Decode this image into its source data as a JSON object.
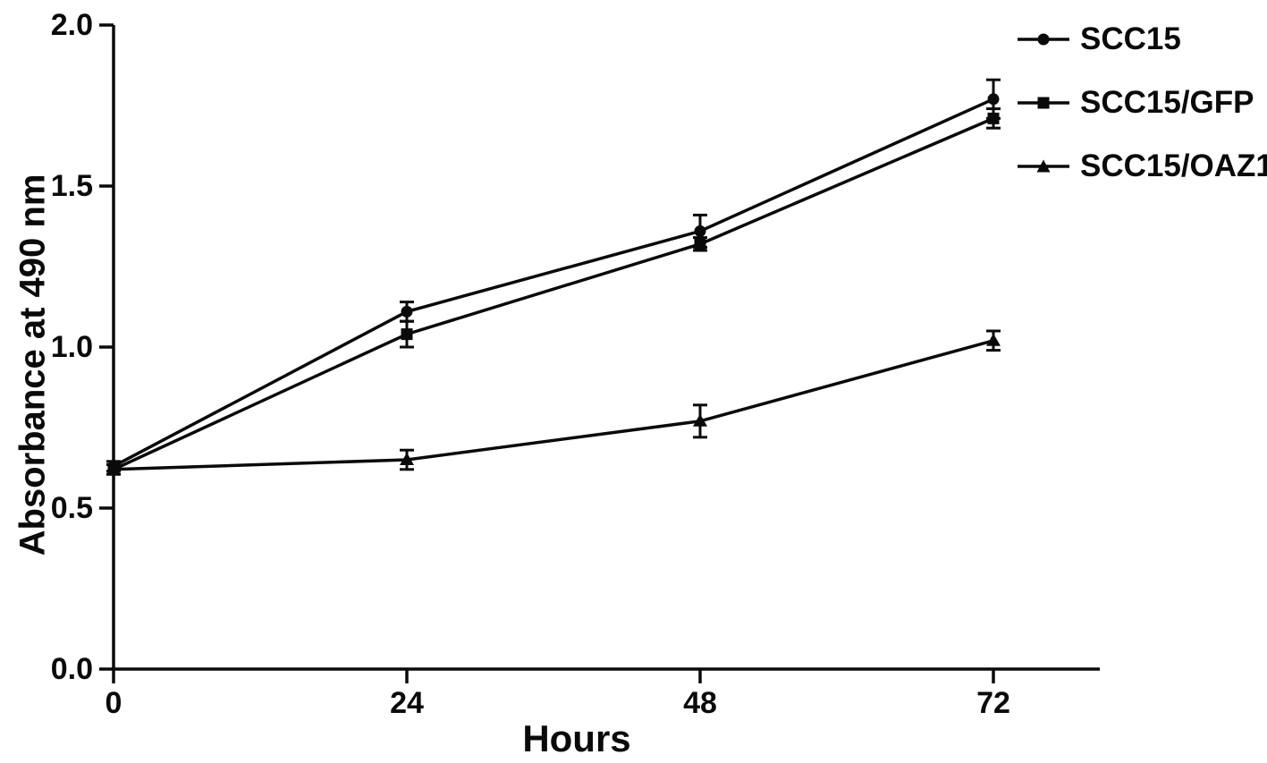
{
  "figure": {
    "background": "#ffffff",
    "ink_color": "#0a0a0a"
  },
  "chart_data": {
    "type": "line",
    "title": "",
    "xlabel": "Hours",
    "ylabel": "Absorbance at 490 nm",
    "x": [
      0,
      24,
      48,
      72
    ],
    "xtick_labels": [
      "0",
      "24",
      "48",
      "72"
    ],
    "ytick_values": [
      0.0,
      0.5,
      1.0,
      1.5,
      2.0
    ],
    "ytick_labels": [
      "0.0",
      "0.5",
      "1.0",
      "1.5",
      "2.0"
    ],
    "xlim": [
      0,
      80.7
    ],
    "ylim": [
      0.0,
      2.0
    ],
    "grid": false,
    "legend_position": "top-right",
    "color": "#0a0a0a",
    "series": [
      {
        "name": "SCC15",
        "marker": "circle",
        "values": [
          0.63,
          1.11,
          1.36,
          1.77
        ],
        "errors": [
          0.015,
          0.03,
          0.05,
          0.06
        ]
      },
      {
        "name": "SCC15/GFP",
        "marker": "square",
        "values": [
          0.62,
          1.04,
          1.32,
          1.71
        ],
        "errors": [
          0.015,
          0.04,
          0.02,
          0.03
        ]
      },
      {
        "name": "SCC15/OAZ1",
        "marker": "triangle",
        "values": [
          0.62,
          0.65,
          0.77,
          1.02
        ],
        "errors": [
          0.015,
          0.03,
          0.05,
          0.03
        ]
      }
    ]
  }
}
